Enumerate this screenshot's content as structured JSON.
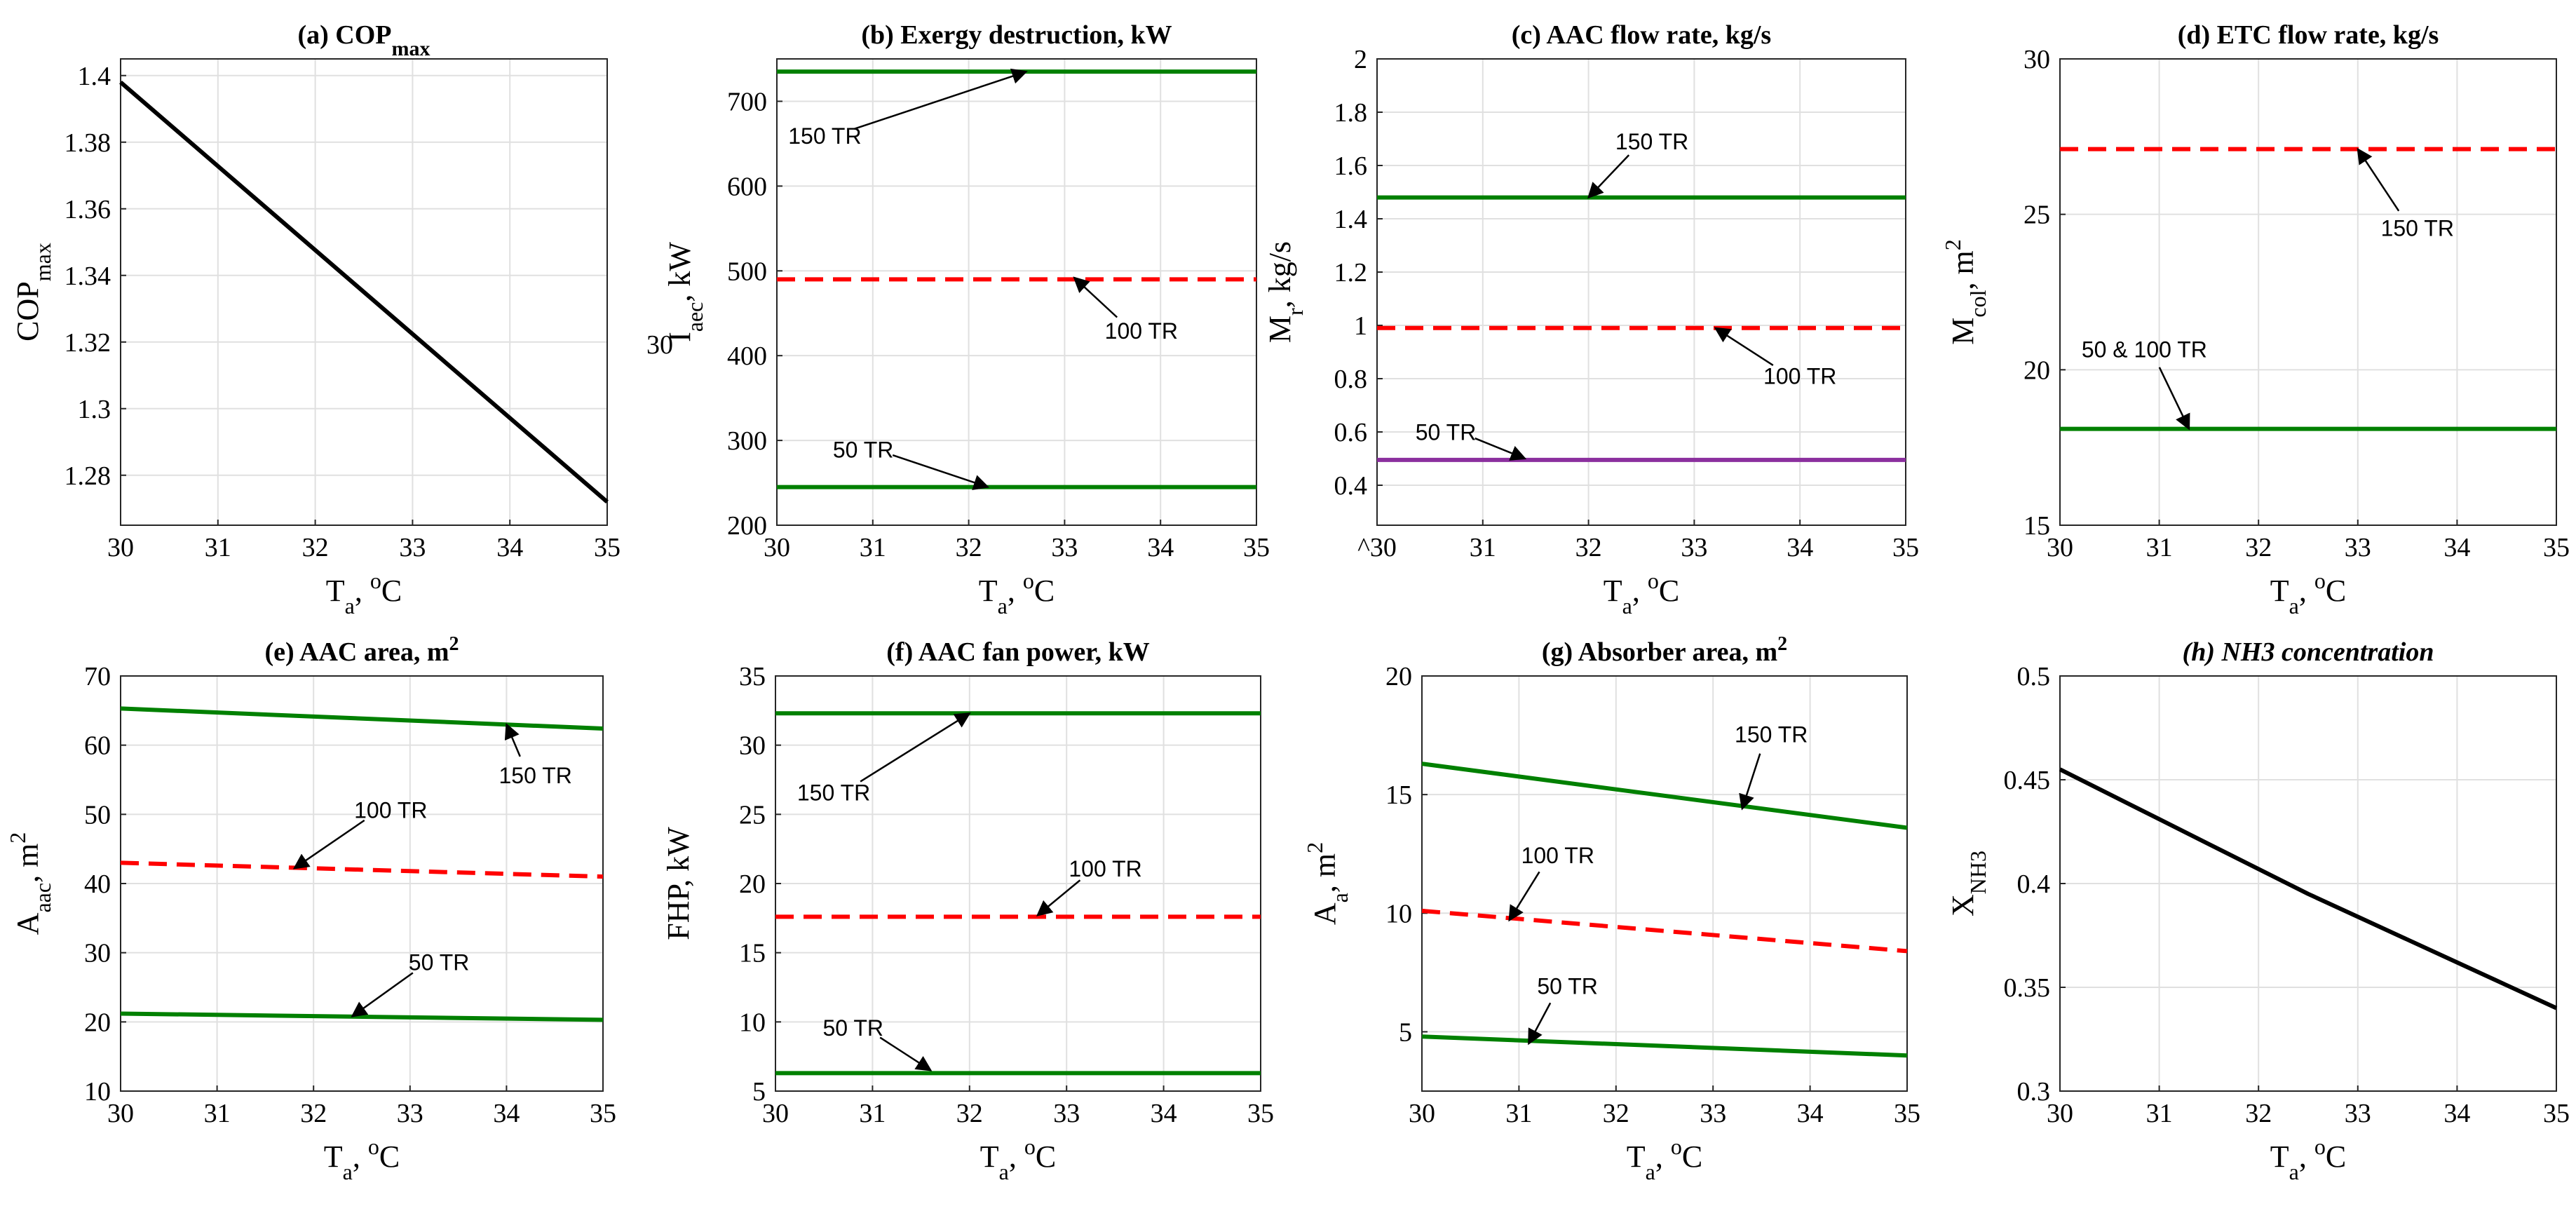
{
  "colors": {
    "green": "#008000",
    "red": "#ff0000",
    "purple": "#8b2f9e",
    "black": "#000000",
    "grid": "#e0e0e0"
  },
  "chart_data": [
    {
      "type": "line",
      "title": {
        "label": "(a) COP",
        "sub": "max"
      },
      "xlabel": {
        "main": "T",
        "sub": "a",
        "rest": ", ",
        "sup": "o",
        "tail": "C"
      },
      "ylabel": {
        "main": "COP",
        "sub": "max"
      },
      "xlim": [
        30,
        35
      ],
      "ylim": [
        1.265,
        1.405
      ],
      "xticks": [
        30,
        31,
        32,
        33,
        34,
        35
      ],
      "xtick_labels": [
        "30",
        "31",
        "32",
        "33",
        "34",
        "35"
      ],
      "yticks": [
        1.28,
        1.3,
        1.32,
        1.34,
        1.36,
        1.38,
        1.4
      ],
      "ytick_labels": [
        "1.28",
        "1.3",
        "1.32",
        "1.34",
        "1.36",
        "1.38",
        "1.4"
      ],
      "series": [
        {
          "name": "COPmax",
          "color": "#000000",
          "dash": false,
          "x": [
            30,
            35
          ],
          "y": [
            1.398,
            1.272
          ]
        }
      ],
      "annotations": []
    },
    {
      "type": "line",
      "title": {
        "label": "(b) Exergy destruction, kW"
      },
      "xlabel": {
        "main": "T",
        "sub": "a",
        "rest": ", ",
        "sup": "o",
        "tail": "C"
      },
      "ylabel": {
        "main": "I",
        "sub": "aec",
        "rest": ", kW"
      },
      "stray_label": "30",
      "xlim": [
        30,
        35
      ],
      "ylim": [
        200,
        750
      ],
      "xticks": [
        30,
        31,
        32,
        33,
        34,
        35
      ],
      "xtick_labels": [
        "30",
        "31",
        "32",
        "33",
        "34",
        "35"
      ],
      "yticks": [
        200,
        300,
        400,
        500,
        600,
        700
      ],
      "ytick_labels": [
        "200",
        "300",
        "400",
        "500",
        "600",
        "700"
      ],
      "series": [
        {
          "name": "150 TR",
          "color": "#008000",
          "dash": false,
          "x": [
            30,
            35
          ],
          "y": [
            735,
            735
          ]
        },
        {
          "name": "100 TR",
          "color": "#ff0000",
          "dash": true,
          "x": [
            30,
            35
          ],
          "y": [
            490,
            490
          ]
        },
        {
          "name": "50 TR",
          "color": "#008000",
          "dash": false,
          "x": [
            30,
            35
          ],
          "y": [
            245,
            245
          ]
        }
      ],
      "annotations": [
        {
          "text": "150 TR",
          "tx": 30.5,
          "ty": 650,
          "ax": 32.6,
          "ay": 735
        },
        {
          "text": "100 TR",
          "tx": 33.8,
          "ty": 420,
          "ax": 33.1,
          "ay": 492
        },
        {
          "text": "50 TR",
          "tx": 30.9,
          "ty": 280,
          "ax": 32.2,
          "ay": 245
        }
      ]
    },
    {
      "type": "line",
      "title": {
        "label": "(c) AAC flow rate, kg/s"
      },
      "xlabel": {
        "main": "T",
        "sub": "a",
        "rest": ", ",
        "sup": "o",
        "tail": "C"
      },
      "ylabel": {
        "main": "M",
        "sub": "r",
        "rest": ", kg/s"
      },
      "xlim": [
        30,
        35
      ],
      "ylim": [
        0.25,
        2.0
      ],
      "xticks": [
        30,
        31,
        32,
        33,
        34,
        35
      ],
      "xtick_labels": [
        "^30",
        "31",
        "32",
        "33",
        "34",
        "35"
      ],
      "yticks": [
        0.4,
        0.6,
        0.8,
        1,
        1.2,
        1.4,
        1.6,
        1.8,
        2
      ],
      "ytick_labels": [
        "0.4",
        "0.6",
        "0.8",
        "1",
        "1.2",
        "1.4",
        "1.6",
        "1.8",
        "2"
      ],
      "series": [
        {
          "name": "150 TR",
          "color": "#008000",
          "dash": false,
          "x": [
            30,
            35
          ],
          "y": [
            1.48,
            1.48
          ]
        },
        {
          "name": "100 TR",
          "color": "#ff0000",
          "dash": true,
          "x": [
            30,
            35
          ],
          "y": [
            0.99,
            0.99
          ]
        },
        {
          "name": "50 TR",
          "color": "#8b2f9e",
          "dash": false,
          "x": [
            30,
            35
          ],
          "y": [
            0.495,
            0.495
          ]
        }
      ],
      "annotations": [
        {
          "text": "150 TR",
          "tx": 32.6,
          "ty": 1.66,
          "ax": 32.0,
          "ay": 1.48
        },
        {
          "text": "100 TR",
          "tx": 34.0,
          "ty": 0.78,
          "ax": 33.2,
          "ay": 0.99
        },
        {
          "text": "50 TR",
          "tx": 30.65,
          "ty": 0.57,
          "ax": 31.4,
          "ay": 0.5
        }
      ]
    },
    {
      "type": "line",
      "title": {
        "label": "(d) ETC flow rate, kg/s"
      },
      "xlabel": {
        "main": "T",
        "sub": "a",
        "rest": ", ",
        "sup": "o",
        "tail": "C"
      },
      "ylabel": {
        "main": "M",
        "sub": "col",
        "rest": ", m",
        "sup": "2"
      },
      "xlim": [
        30,
        35
      ],
      "ylim": [
        15,
        30
      ],
      "xticks": [
        30,
        31,
        32,
        33,
        34,
        35
      ],
      "xtick_labels": [
        "30",
        "31",
        "32",
        "33",
        "34",
        "35"
      ],
      "yticks": [
        15,
        20,
        25,
        30
      ],
      "ytick_labels": [
        "15",
        "20",
        "25",
        "30"
      ],
      "series": [
        {
          "name": "150 TR",
          "color": "#ff0000",
          "dash": true,
          "x": [
            30,
            35
          ],
          "y": [
            27.1,
            27.1
          ]
        },
        {
          "name": "50 & 100 TR",
          "color": "#008000",
          "dash": false,
          "x": [
            30,
            35
          ],
          "y": [
            18.1,
            18.1
          ]
        }
      ],
      "annotations": [
        {
          "text": "150 TR",
          "tx": 33.6,
          "ty": 24.3,
          "ax": 33.0,
          "ay": 27.1
        },
        {
          "text": "50 & 100 TR",
          "tx": 30.85,
          "ty": 20.4,
          "ax": 31.3,
          "ay": 18.1
        }
      ]
    },
    {
      "type": "line",
      "title": {
        "label": "(e) AAC area, m",
        "sup": "2"
      },
      "xlabel": {
        "main": "T",
        "sub": "a",
        "rest": ", ",
        "sup": "o",
        "tail": "C"
      },
      "ylabel": {
        "main": "A",
        "sub": "aac",
        "rest": ", m",
        "sup": "2"
      },
      "xlim": [
        30,
        35
      ],
      "ylim": [
        10,
        70
      ],
      "xticks": [
        30,
        31,
        32,
        33,
        34,
        35
      ],
      "xtick_labels": [
        "30",
        "31",
        "32",
        "33",
        "34",
        "35"
      ],
      "yticks": [
        10,
        20,
        30,
        40,
        50,
        60,
        70
      ],
      "ytick_labels": [
        "10",
        "20",
        "30",
        "40",
        "50",
        "60",
        "70"
      ],
      "series": [
        {
          "name": "150 TR",
          "color": "#008000",
          "dash": false,
          "x": [
            30,
            35
          ],
          "y": [
            65.3,
            62.4
          ]
        },
        {
          "name": "100 TR",
          "color": "#ff0000",
          "dash": true,
          "x": [
            30,
            35
          ],
          "y": [
            43.0,
            41.0
          ]
        },
        {
          "name": "50 TR",
          "color": "#008000",
          "dash": false,
          "x": [
            30,
            35
          ],
          "y": [
            21.2,
            20.3
          ]
        }
      ],
      "annotations": [
        {
          "text": "150 TR",
          "tx": 34.3,
          "ty": 54.5,
          "ax": 34.0,
          "ay": 63.0
        },
        {
          "text": "100 TR",
          "tx": 32.8,
          "ty": 49.5,
          "ax": 31.8,
          "ay": 42.2
        },
        {
          "text": "50 TR",
          "tx": 33.3,
          "ty": 27.5,
          "ax": 32.4,
          "ay": 20.8
        }
      ]
    },
    {
      "type": "line",
      "title": {
        "label": "(f) AAC fan power, kW"
      },
      "xlabel": {
        "main": "T",
        "sub": "a",
        "rest": ", ",
        "sup": "o",
        "tail": "C"
      },
      "ylabel": {
        "main": "FHP, kW"
      },
      "xlim": [
        30,
        35
      ],
      "ylim": [
        5,
        35
      ],
      "xticks": [
        30,
        31,
        32,
        33,
        34,
        35
      ],
      "xtick_labels": [
        "30",
        "31",
        "32",
        "33",
        "34",
        "35"
      ],
      "yticks": [
        5,
        10,
        15,
        20,
        25,
        30,
        35
      ],
      "ytick_labels": [
        "5",
        "10",
        "15",
        "20",
        "25",
        "30",
        "35"
      ],
      "series": [
        {
          "name": "150 TR",
          "color": "#008000",
          "dash": false,
          "x": [
            30,
            35
          ],
          "y": [
            32.3,
            32.3
          ]
        },
        {
          "name": "100 TR",
          "color": "#ff0000",
          "dash": true,
          "x": [
            30,
            35
          ],
          "y": [
            17.6,
            17.6
          ]
        },
        {
          "name": "50 TR",
          "color": "#008000",
          "dash": false,
          "x": [
            30,
            35
          ],
          "y": [
            6.3,
            6.3
          ]
        }
      ],
      "annotations": [
        {
          "text": "150 TR",
          "tx": 30.6,
          "ty": 26.0,
          "ax": 32.0,
          "ay": 32.3
        },
        {
          "text": "100 TR",
          "tx": 33.4,
          "ty": 20.5,
          "ax": 32.7,
          "ay": 17.7
        },
        {
          "text": "50 TR",
          "tx": 30.8,
          "ty": 9.0,
          "ax": 31.6,
          "ay": 6.5
        }
      ]
    },
    {
      "type": "line",
      "title": {
        "label": "(g) Absorber area, m",
        "sup": "2"
      },
      "xlabel": {
        "main": "T",
        "sub": "a",
        "rest": ", ",
        "sup": "o",
        "tail": "C"
      },
      "ylabel": {
        "main": "A",
        "sub": "a",
        "rest": ", m",
        "sup": "2"
      },
      "xlim": [
        30,
        35
      ],
      "ylim": [
        2.5,
        20
      ],
      "xticks": [
        30,
        31,
        32,
        33,
        34,
        35
      ],
      "xtick_labels": [
        "30",
        "31",
        "32",
        "33",
        "34",
        "35"
      ],
      "yticks": [
        5,
        10,
        15,
        20
      ],
      "ytick_labels": [
        "5",
        "10",
        "15",
        "20"
      ],
      "series": [
        {
          "name": "150 TR",
          "color": "#008000",
          "dash": false,
          "x": [
            30,
            35
          ],
          "y": [
            16.3,
            13.6
          ]
        },
        {
          "name": "100 TR",
          "color": "#ff0000",
          "dash": true,
          "x": [
            30,
            35
          ],
          "y": [
            10.1,
            8.4
          ]
        },
        {
          "name": "50 TR",
          "color": "#008000",
          "dash": false,
          "x": [
            30,
            35
          ],
          "y": [
            4.8,
            4.0
          ]
        }
      ],
      "annotations": [
        {
          "text": "150 TR",
          "tx": 33.6,
          "ty": 17.2,
          "ax": 33.3,
          "ay": 14.4
        },
        {
          "text": "100 TR",
          "tx": 31.4,
          "ty": 12.1,
          "ax": 30.9,
          "ay": 9.7
        },
        {
          "text": "50 TR",
          "tx": 31.5,
          "ty": 6.6,
          "ax": 31.1,
          "ay": 4.5
        }
      ]
    },
    {
      "type": "line",
      "title": {
        "label": "(h) NH3 concentration",
        "italic": true
      },
      "xlabel": {
        "main": "T",
        "sub": "a",
        "rest": ", ",
        "sup": "o",
        "tail": "C"
      },
      "ylabel": {
        "main": "X",
        "sub": "NH3"
      },
      "xlim": [
        30,
        35
      ],
      "ylim": [
        0.3,
        0.5
      ],
      "xticks": [
        30,
        31,
        32,
        33,
        34,
        35
      ],
      "xtick_labels": [
        "30",
        "31",
        "32",
        "33",
        "34",
        "35"
      ],
      "yticks": [
        0.3,
        0.35,
        0.4,
        0.45,
        0.5
      ],
      "ytick_labels": [
        "0.3",
        "0.35",
        "0.4",
        "0.45",
        "0.5"
      ],
      "series": [
        {
          "name": "XNH3",
          "color": "#000000",
          "dash": false,
          "x": [
            30,
            30.5,
            31,
            31.5,
            32,
            32.5,
            33,
            33.5,
            34,
            34.5,
            35
          ],
          "y": [
            0.455,
            0.443,
            0.431,
            0.419,
            0.407,
            0.395,
            0.384,
            0.373,
            0.362,
            0.351,
            0.34
          ]
        }
      ],
      "annotations": []
    }
  ]
}
